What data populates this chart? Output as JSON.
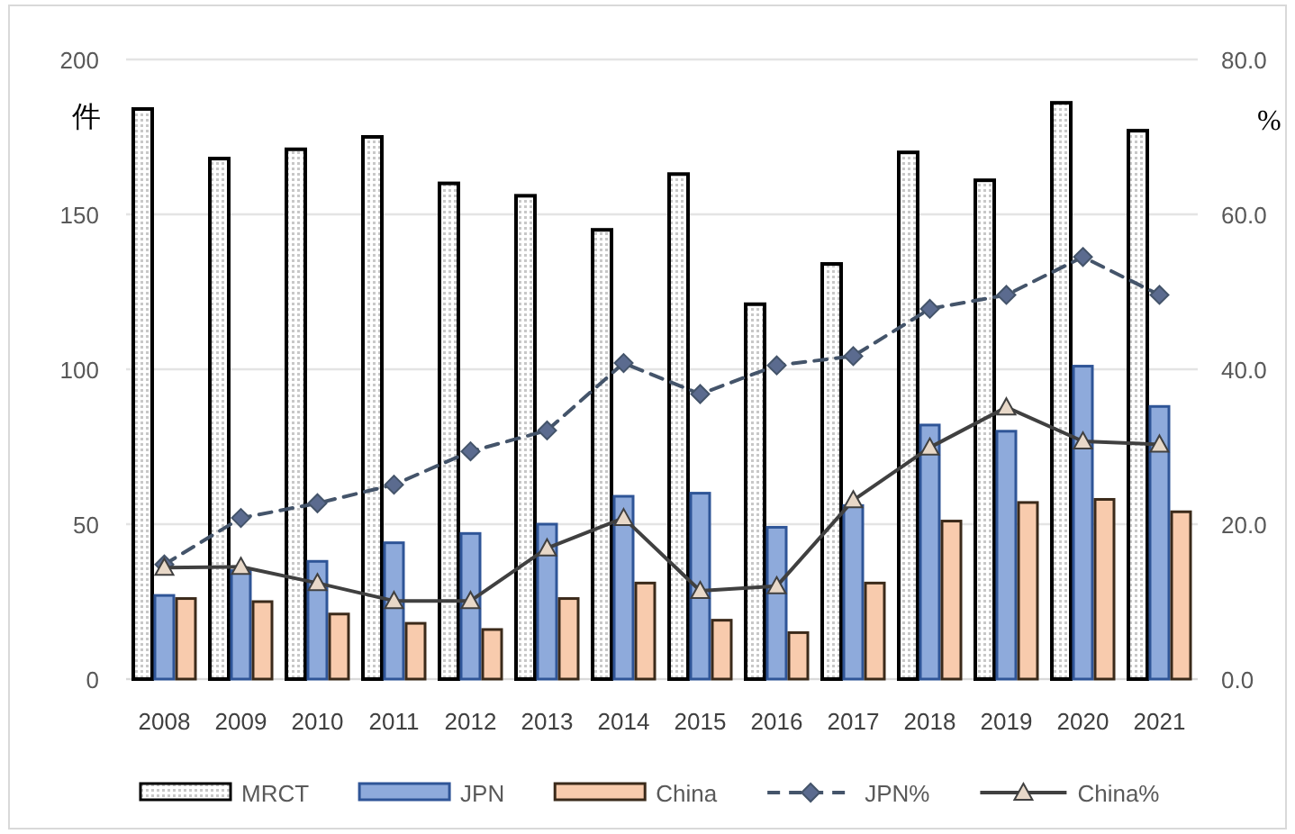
{
  "chart_data": {
    "type": "bar",
    "ylabel": "件",
    "y2label": "%",
    "categories": [
      "2008",
      "2009",
      "2010",
      "2011",
      "2012",
      "2013",
      "2014",
      "2015",
      "2016",
      "2017",
      "2018",
      "2019",
      "2020",
      "2021"
    ],
    "series": [
      {
        "name": "MRCT",
        "color": "#000000",
        "values": [
          184,
          168,
          171,
          175,
          160,
          156,
          145,
          163,
          121,
          134,
          170,
          161,
          186,
          177
        ]
      },
      {
        "name": "JPN",
        "color": "#8eaadb",
        "values": [
          27,
          35,
          38,
          44,
          47,
          50,
          59,
          60,
          49,
          56,
          82,
          80,
          101,
          88
        ]
      },
      {
        "name": "China",
        "color": "#f8cbad",
        "values": [
          26,
          25,
          21,
          18,
          16,
          26,
          31,
          19,
          15,
          31,
          51,
          57,
          58,
          54
        ]
      },
      {
        "name": "JPN%",
        "type": "line",
        "axis": "y2",
        "color": "#44546a",
        "marker": "diamond",
        "line_style": "dashed",
        "values": [
          14.8,
          20.8,
          22.7,
          25.1,
          29.4,
          32.1,
          40.8,
          36.8,
          40.5,
          41.7,
          47.8,
          49.6,
          54.5,
          49.6
        ]
      },
      {
        "name": "China%",
        "type": "line",
        "axis": "y2",
        "color": "#404040",
        "marker": "triangle",
        "line_style": "solid",
        "values": [
          14.4,
          14.5,
          12.4,
          10.1,
          10.1,
          16.9,
          20.8,
          11.4,
          12.0,
          23.1,
          29.9,
          35.1,
          30.7,
          30.3
        ]
      }
    ],
    "ylim": [
      0,
      200
    ],
    "yticks": [
      0,
      50,
      100,
      150,
      200
    ],
    "y2lim": [
      0,
      80
    ],
    "y2ticks": [
      {
        "value": 0,
        "label": "0.0"
      },
      {
        "value": 20,
        "label": "20.0"
      },
      {
        "value": 40,
        "label": "40.0"
      },
      {
        "value": 60,
        "label": "60.0"
      },
      {
        "value": 80,
        "label": "80.0"
      }
    ],
    "grid": "y",
    "legend": "bottom"
  }
}
